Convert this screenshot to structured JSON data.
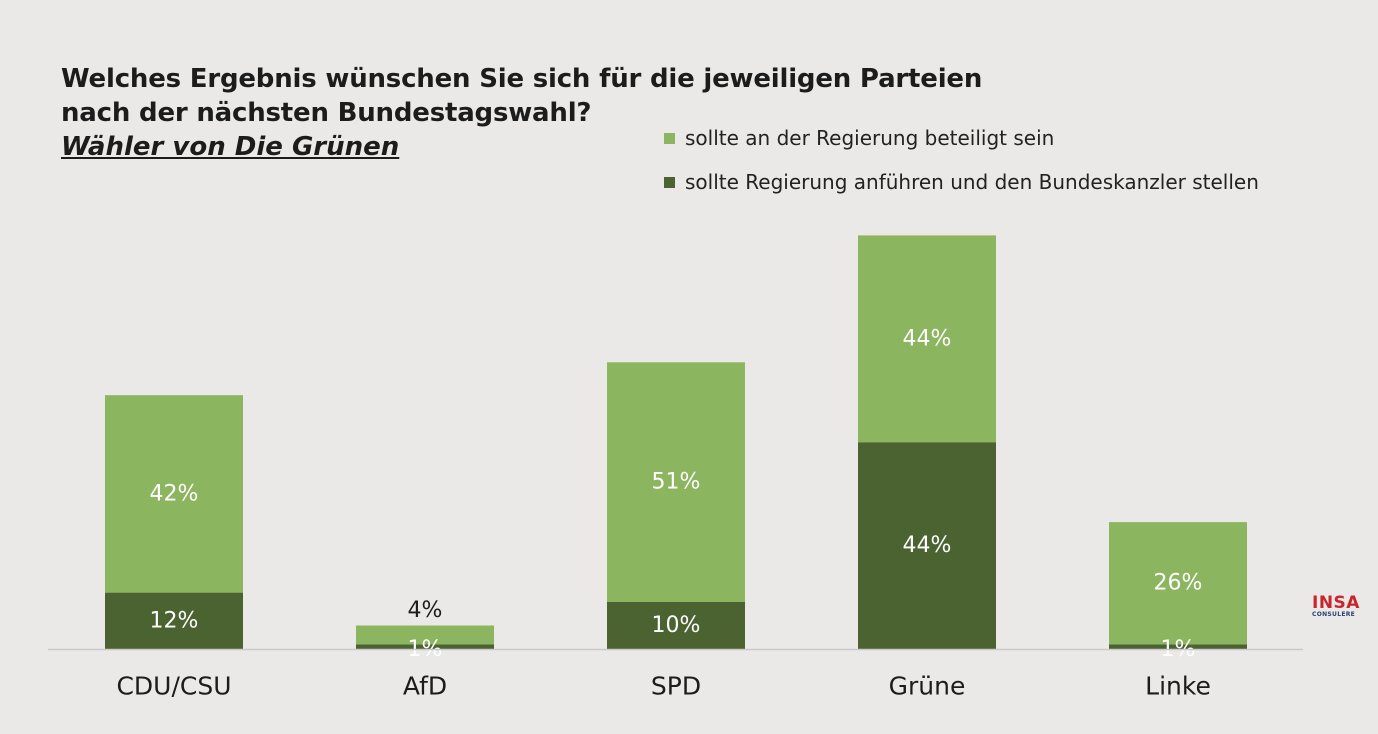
{
  "title": {
    "line1": "Welches Ergebnis wünschen Sie sich für die jeweiligen Parteien",
    "line2": "nach der nächsten Bundestagswahl?",
    "subtitle": "Wähler von Die Grünen"
  },
  "logo": {
    "main": "INSA",
    "sub": "CONSULERE"
  },
  "colors": {
    "light": "#8bb55e",
    "dark": "#4a6330",
    "background": "#ebe9e7",
    "axis": "#c9c9c9"
  },
  "chart_data": {
    "type": "bar",
    "stacked": true,
    "categories": [
      "CDU/CSU",
      "AfD",
      "SPD",
      "Grüne",
      "Linke"
    ],
    "series": [
      {
        "name": "sollte Regierung anführen und den Bundeskanzler stellen",
        "values": [
          12,
          1,
          10,
          44,
          1
        ],
        "color": "#4a6330"
      },
      {
        "name": "sollte an der Regierung beteiligt sein",
        "values": [
          42,
          4,
          51,
          44,
          26
        ],
        "color": "#8bb55e"
      }
    ],
    "data_labels": [
      [
        "12%",
        "1%",
        "10%",
        "44%",
        "1%"
      ],
      [
        "42%",
        "4%",
        "51%",
        "44%",
        "26%"
      ]
    ],
    "legend_position": "top-right",
    "grid": false,
    "ylim": [
      0,
      88
    ]
  }
}
